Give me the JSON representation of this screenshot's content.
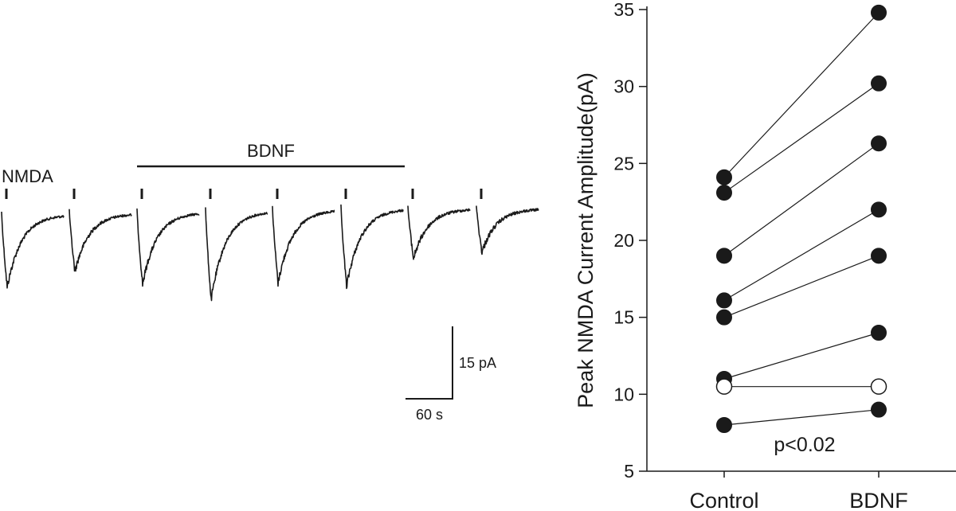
{
  "trace_panel": {
    "stimulus_label": "NMDA",
    "treatment_label": "BDNF",
    "scale_bar_y": "15 pA",
    "scale_bar_x": "60 s",
    "trace_color": "#1a1a1a",
    "responses": [
      {
        "peak_pA": 15.5,
        "treatment": false
      },
      {
        "peak_pA": 12.5,
        "treatment": false
      },
      {
        "peak_pA": 15.3,
        "treatment": true
      },
      {
        "peak_pA": 18.8,
        "treatment": true
      },
      {
        "peak_pA": 15.6,
        "treatment": true
      },
      {
        "peak_pA": 16.5,
        "treatment": true
      },
      {
        "peak_pA": 10.8,
        "treatment": false
      },
      {
        "peak_pA": 9.5,
        "treatment": false
      }
    ]
  },
  "chart_data": {
    "type": "scatter",
    "style": "paired before-after lines",
    "categories": [
      "Control",
      "BDNF"
    ],
    "ylabel": "Peak NMDA Current Amplitude(pA)",
    "xlabel": "",
    "ylim": [
      5,
      35
    ],
    "yticks": [
      5,
      10,
      15,
      20,
      25,
      30,
      35
    ],
    "annotation": "p<0.02",
    "pairs": [
      {
        "control": 24.1,
        "bdnf": 34.8,
        "marker": "filled"
      },
      {
        "control": 23.1,
        "bdnf": 30.2,
        "marker": "filled"
      },
      {
        "control": 19.0,
        "bdnf": 26.3,
        "marker": "filled"
      },
      {
        "control": 16.1,
        "bdnf": 22.0,
        "marker": "filled"
      },
      {
        "control": 15.0,
        "bdnf": 19.0,
        "marker": "filled"
      },
      {
        "control": 11.0,
        "bdnf": 14.0,
        "marker": "filled"
      },
      {
        "control": 10.5,
        "bdnf": 10.5,
        "marker": "open"
      },
      {
        "control": 8.0,
        "bdnf": 9.0,
        "marker": "filled"
      }
    ]
  }
}
